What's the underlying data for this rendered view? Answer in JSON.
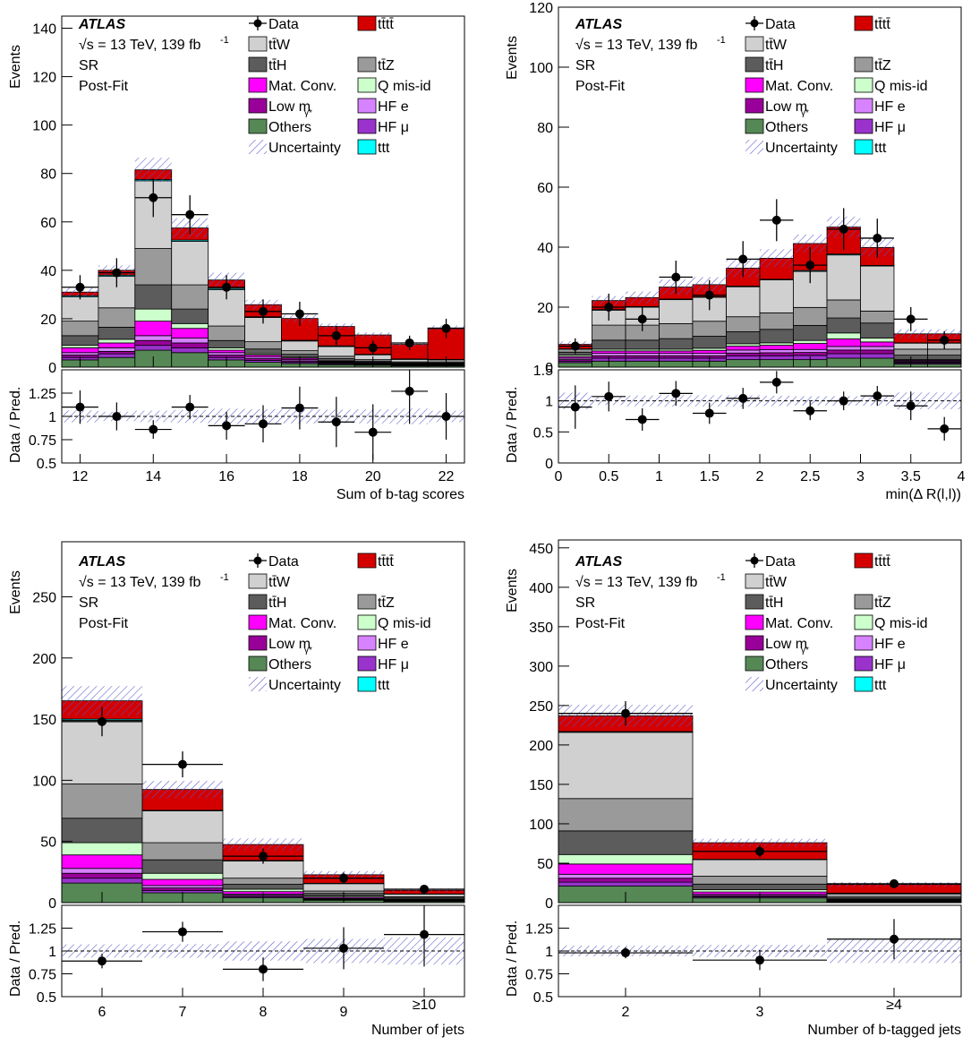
{
  "legend": {
    "experiment": "ATLAS",
    "energy_label": "√s = 13 TeV, 139 fb",
    "energy_sup": "-1",
    "region": "SR",
    "fit_state": "Post-Fit",
    "items": [
      {
        "label": "Data",
        "kind": "data"
      },
      {
        "label": "tt̄tt̄",
        "color": "#d40000"
      },
      {
        "label": "tt̄W",
        "color": "#d0d0d0"
      },
      {
        "label": "tt̄Z",
        "color": "#9a9a9a"
      },
      {
        "label": "tt̄H",
        "color": "#5c5c5c"
      },
      {
        "label": "Q mis-id",
        "color": "#ccffcc"
      },
      {
        "label": "Mat. Conv.",
        "color": "#ff00ff"
      },
      {
        "label": "HF e",
        "color": "#d782ff"
      },
      {
        "label": "Low m",
        "sub": "γ*",
        "color": "#990099"
      },
      {
        "label": "HF μ",
        "color": "#9933cc"
      },
      {
        "label": "Others",
        "color": "#558855"
      },
      {
        "label": "ttt",
        "color": "#00ffff"
      },
      {
        "label": "Uncertainty",
        "kind": "hatch"
      }
    ]
  },
  "process_order": [
    "Others",
    "HF μ",
    "Low m",
    "HF e",
    "Mat. Conv.",
    "Q mis-id",
    "tt̄H",
    "tt̄Z",
    "tt̄W",
    "ttt",
    "tt̄tt̄"
  ],
  "process_colors": [
    "#558855",
    "#9933cc",
    "#990099",
    "#d782ff",
    "#ff00ff",
    "#ccffcc",
    "#5c5c5c",
    "#9a9a9a",
    "#d0d0d0",
    "#00ffff",
    "#d40000"
  ],
  "chart_data": [
    {
      "type": "bar",
      "xlabel": "Sum of b-tag scores",
      "ylabel": "Events",
      "ratio_ylabel": "Data / Pred.",
      "edges": [
        11.5,
        12.5,
        13.5,
        14.5,
        15.5,
        16.5,
        17.5,
        18.5,
        19.5,
        20.5,
        21.5,
        22.5
      ],
      "xlim": [
        11.5,
        22.5
      ],
      "xticks": [
        12,
        14,
        16,
        18,
        20,
        22
      ],
      "ylim": [
        0,
        145
      ],
      "yticks": [
        0,
        20,
        40,
        60,
        80,
        100,
        120,
        140
      ],
      "ratio_ylim": [
        0.5,
        1.5
      ],
      "ratio_yticks": [
        0.5,
        0.75,
        1,
        1.25
      ],
      "stack": [
        [
          3,
          4,
          7,
          6,
          3,
          2,
          1.5,
          1,
          0.8,
          0.5,
          0.5
        ],
        [
          1,
          1.5,
          2,
          2,
          1,
          0.8,
          0.6,
          0.4,
          0.3,
          0.2,
          0.2
        ],
        [
          1,
          1,
          2,
          2,
          1,
          0.7,
          0.5,
          0.3,
          0.2,
          0.2,
          0.2
        ],
        [
          1,
          1.5,
          2,
          2,
          1,
          0.7,
          0.5,
          0.3,
          0.2,
          0.2,
          0.2
        ],
        [
          2,
          2,
          6,
          4,
          1,
          0.8,
          0.6,
          0.3,
          0.3,
          0.2,
          0.2
        ],
        [
          1,
          1.5,
          5,
          2,
          1,
          0.5,
          0.4,
          0.3,
          0.2,
          0.2,
          0.2
        ],
        [
          4,
          5,
          10,
          6,
          3,
          2,
          1.2,
          0.9,
          0.5,
          0.3,
          0.3
        ],
        [
          6,
          8,
          15,
          10,
          6,
          3,
          1.5,
          1,
          0.6,
          0.4,
          0.4
        ],
        [
          10,
          13,
          28,
          18,
          15,
          10,
          4,
          4,
          2,
          1,
          0.8
        ],
        [
          0.5,
          0.5,
          0.5,
          0.5,
          0.5,
          0.3,
          0.3,
          0.3,
          0.2,
          0.2,
          0.2
        ],
        [
          1.5,
          2,
          4,
          5,
          3.5,
          5,
          9,
          8,
          8,
          6,
          13
        ]
      ],
      "uncertainty": [
        2,
        2,
        5,
        4,
        3,
        2,
        1.5,
        1.2,
        1,
        0.8,
        1
      ],
      "data": [
        {
          "x": 12,
          "y": 33,
          "err": 5
        },
        {
          "x": 13,
          "y": 39,
          "err": 6
        },
        {
          "x": 14,
          "y": 70,
          "err": 8
        },
        {
          "x": 15,
          "y": 63,
          "err": 8
        },
        {
          "x": 16,
          "y": 33,
          "err": 5
        },
        {
          "x": 17,
          "y": 23,
          "err": 5
        },
        {
          "x": 18,
          "y": 22,
          "err": 5
        },
        {
          "x": 19,
          "y": 13,
          "err": 4
        },
        {
          "x": 20,
          "y": 8,
          "err": 3
        },
        {
          "x": 21,
          "y": 10,
          "err": 3
        },
        {
          "x": 22,
          "y": 16,
          "err": 4
        }
      ],
      "ratio": [
        {
          "x": 12,
          "y": 1.1,
          "err": 0.18
        },
        {
          "x": 13,
          "y": 1.0,
          "err": 0.15
        },
        {
          "x": 14,
          "y": 0.86,
          "err": 0.1
        },
        {
          "x": 15,
          "y": 1.1,
          "err": 0.13
        },
        {
          "x": 16,
          "y": 0.9,
          "err": 0.15
        },
        {
          "x": 17,
          "y": 0.92,
          "err": 0.2
        },
        {
          "x": 18,
          "y": 1.09,
          "err": 0.23
        },
        {
          "x": 19,
          "y": 0.94,
          "err": 0.27
        },
        {
          "x": 20,
          "y": 0.83,
          "err": 0.3
        },
        {
          "x": 21,
          "y": 1.27,
          "err": 0.35
        },
        {
          "x": 22,
          "y": 1.0,
          "err": 0.25
        }
      ]
    },
    {
      "type": "bar",
      "xlabel": "min(Δ R(l,l))",
      "ylabel": "Events",
      "ratio_ylabel": "Data / Pred.",
      "edges": [
        0,
        0.333,
        0.667,
        1,
        1.333,
        1.667,
        2,
        2.333,
        2.667,
        3,
        3.333,
        3.667,
        4
      ],
      "xlim": [
        0,
        4
      ],
      "xticks": [
        0,
        0.5,
        1,
        1.5,
        2,
        2.5,
        3,
        3.5,
        4
      ],
      "ylim": [
        0,
        120
      ],
      "yticks": [
        0,
        20,
        40,
        60,
        80,
        100,
        120
      ],
      "ratio_ylim": [
        0,
        1.5
      ],
      "ratio_yticks": [
        0,
        0.5,
        1,
        1.5
      ],
      "stack": [
        [
          1.5,
          2,
          2,
          2,
          2,
          2.5,
          2.5,
          2.5,
          3,
          3,
          1,
          1
        ],
        [
          0.5,
          1,
          1,
          1,
          1,
          1.2,
          1.3,
          1.4,
          1.5,
          1.5,
          0.4,
          0.4
        ],
        [
          0.5,
          0.8,
          0.8,
          0.8,
          0.8,
          1,
          1,
          1,
          1.2,
          1.2,
          0.3,
          0.3
        ],
        [
          0.5,
          0.8,
          0.8,
          0.8,
          0.8,
          1,
          1,
          1,
          1.2,
          1.2,
          0.3,
          0.3
        ],
        [
          0.5,
          0.8,
          0.8,
          0.8,
          1,
          1.3,
          1.5,
          2,
          2.5,
          1.5,
          0.3,
          0.3
        ],
        [
          0.5,
          0.6,
          0.6,
          0.6,
          0.7,
          0.8,
          0.8,
          1,
          2,
          1.3,
          0.2,
          0.2
        ],
        [
          1,
          3,
          3,
          3.5,
          4,
          4,
          4.5,
          5,
          5,
          5,
          1.5,
          1.5
        ],
        [
          1,
          5,
          5,
          5,
          5,
          5,
          5.5,
          6,
          6,
          4,
          2,
          2
        ],
        [
          0,
          5,
          6,
          8,
          8,
          10,
          11,
          12,
          15,
          15,
          2,
          2
        ],
        [
          0.1,
          0.2,
          0.2,
          0.2,
          0.2,
          0.2,
          0.2,
          0.3,
          0.3,
          0.2,
          0.1,
          0.1
        ],
        [
          1.5,
          3,
          3,
          4,
          4,
          6,
          7,
          9,
          9,
          6,
          3,
          3
        ]
      ],
      "uncertainty": [
        1,
        1.5,
        2,
        2.5,
        2.5,
        3,
        3,
        3,
        3.5,
        3,
        1.5,
        1.5
      ],
      "data": [
        {
          "x": 0.167,
          "y": 7,
          "err": 2.6
        },
        {
          "x": 0.5,
          "y": 20,
          "err": 4.5
        },
        {
          "x": 0.833,
          "y": 16,
          "err": 4
        },
        {
          "x": 1.167,
          "y": 30,
          "err": 5.5
        },
        {
          "x": 1.5,
          "y": 24,
          "err": 5
        },
        {
          "x": 1.833,
          "y": 36,
          "err": 6
        },
        {
          "x": 2.167,
          "y": 49,
          "err": 7
        },
        {
          "x": 2.5,
          "y": 34,
          "err": 6
        },
        {
          "x": 2.833,
          "y": 46,
          "err": 7
        },
        {
          "x": 3.167,
          "y": 43,
          "err": 6.5
        },
        {
          "x": 3.5,
          "y": 16,
          "err": 4
        },
        {
          "x": 3.833,
          "y": 9,
          "err": 3
        }
      ],
      "ratio": [
        {
          "x": 0.167,
          "y": 0.9,
          "err": 0.35
        },
        {
          "x": 0.5,
          "y": 1.07,
          "err": 0.24
        },
        {
          "x": 0.833,
          "y": 0.7,
          "err": 0.18
        },
        {
          "x": 1.167,
          "y": 1.12,
          "err": 0.2
        },
        {
          "x": 1.5,
          "y": 0.8,
          "err": 0.17
        },
        {
          "x": 1.833,
          "y": 1.04,
          "err": 0.17
        },
        {
          "x": 2.167,
          "y": 1.3,
          "err": 0.18
        },
        {
          "x": 2.5,
          "y": 0.84,
          "err": 0.15
        },
        {
          "x": 2.833,
          "y": 1.0,
          "err": 0.15
        },
        {
          "x": 3.167,
          "y": 1.08,
          "err": 0.16
        },
        {
          "x": 3.5,
          "y": 0.92,
          "err": 0.23
        },
        {
          "x": 3.833,
          "y": 0.55,
          "err": 0.19
        }
      ]
    },
    {
      "type": "bar",
      "xlabel": "Number of jets",
      "ylabel": "Events",
      "ratio_ylabel": "Data / Pred.",
      "edges": [
        5.5,
        6.5,
        7.5,
        8.5,
        9.5,
        10.5
      ],
      "xlim": [
        5.5,
        10.5
      ],
      "xticks": [
        6,
        7,
        8,
        9
      ],
      "xticklabels": [
        "6",
        "7",
        "8",
        "9",
        "≥10"
      ],
      "ylim": [
        0,
        295
      ],
      "yticks": [
        0,
        50,
        100,
        150,
        200,
        250
      ],
      "ratio_ylim": [
        0.5,
        1.5
      ],
      "ratio_yticks": [
        0.5,
        0.75,
        1,
        1.25
      ],
      "stack": [
        [
          16,
          8,
          4,
          2,
          1
        ],
        [
          4,
          2,
          1,
          0.5,
          0.3
        ],
        [
          4,
          2,
          1,
          0.5,
          0.3
        ],
        [
          4,
          2,
          1,
          0.5,
          0.3
        ],
        [
          11,
          5,
          2,
          1,
          0.5
        ],
        [
          10,
          5,
          2,
          1,
          0.5
        ],
        [
          20,
          11,
          4,
          2,
          1
        ],
        [
          28,
          14,
          5,
          2,
          1
        ],
        [
          52,
          26,
          14,
          6,
          2
        ],
        [
          1,
          0.5,
          0.5,
          0.3,
          0.2
        ],
        [
          15,
          17,
          13,
          7,
          3
        ]
      ],
      "uncertainty": [
        12,
        7,
        5,
        3,
        1.5
      ],
      "data": [
        {
          "x": 6,
          "y": 148,
          "err": 12
        },
        {
          "x": 7,
          "y": 113,
          "err": 10.6
        },
        {
          "x": 8,
          "y": 38,
          "err": 6.2
        },
        {
          "x": 9,
          "y": 20,
          "err": 4.5
        },
        {
          "x": 10,
          "y": 11,
          "err": 3.3
        }
      ],
      "ratio": [
        {
          "x": 6,
          "y": 0.89,
          "err": 0.08
        },
        {
          "x": 7,
          "y": 1.21,
          "err": 0.11
        },
        {
          "x": 8,
          "y": 0.8,
          "err": 0.13
        },
        {
          "x": 9,
          "y": 1.03,
          "err": 0.23
        },
        {
          "x": 10,
          "y": 1.18,
          "err": 0.35
        }
      ]
    },
    {
      "type": "bar",
      "xlabel": "Number of b-tagged jets",
      "ylabel": "Events",
      "ratio_ylabel": "Data / Pred.",
      "edges": [
        1.5,
        2.5,
        3.5,
        4.5
      ],
      "xlim": [
        1.5,
        4.5
      ],
      "xticks": [
        2,
        3
      ],
      "xticklabels": [
        "2",
        "3",
        "≥4"
      ],
      "ylim": [
        0,
        460
      ],
      "yticks": [
        0,
        50,
        100,
        150,
        200,
        250,
        300,
        350,
        400,
        450
      ],
      "ratio_ylim": [
        0.5,
        1.5
      ],
      "ratio_yticks": [
        0.5,
        0.75,
        1,
        1.25
      ],
      "stack": [
        [
          21,
          6,
          1
        ],
        [
          5,
          1.5,
          0.5
        ],
        [
          5,
          1.5,
          0.5
        ],
        [
          5,
          1.5,
          0.5
        ],
        [
          13,
          3,
          1
        ],
        [
          12,
          3,
          1
        ],
        [
          30,
          7,
          1.5
        ],
        [
          41,
          10,
          2
        ],
        [
          84,
          21,
          3
        ],
        [
          1,
          0.5,
          1
        ],
        [
          20,
          21,
          11
        ]
      ],
      "uncertainty": [
        14,
        5,
        3
      ],
      "data": [
        {
          "x": 2,
          "y": 240,
          "err": 15.5
        },
        {
          "x": 3,
          "y": 65,
          "err": 8
        },
        {
          "x": 4,
          "y": 24,
          "err": 5
        }
      ],
      "ratio": [
        {
          "x": 2,
          "y": 0.98,
          "err": 0.06
        },
        {
          "x": 3,
          "y": 0.9,
          "err": 0.11
        },
        {
          "x": 4,
          "y": 1.13,
          "err": 0.22
        }
      ]
    }
  ]
}
